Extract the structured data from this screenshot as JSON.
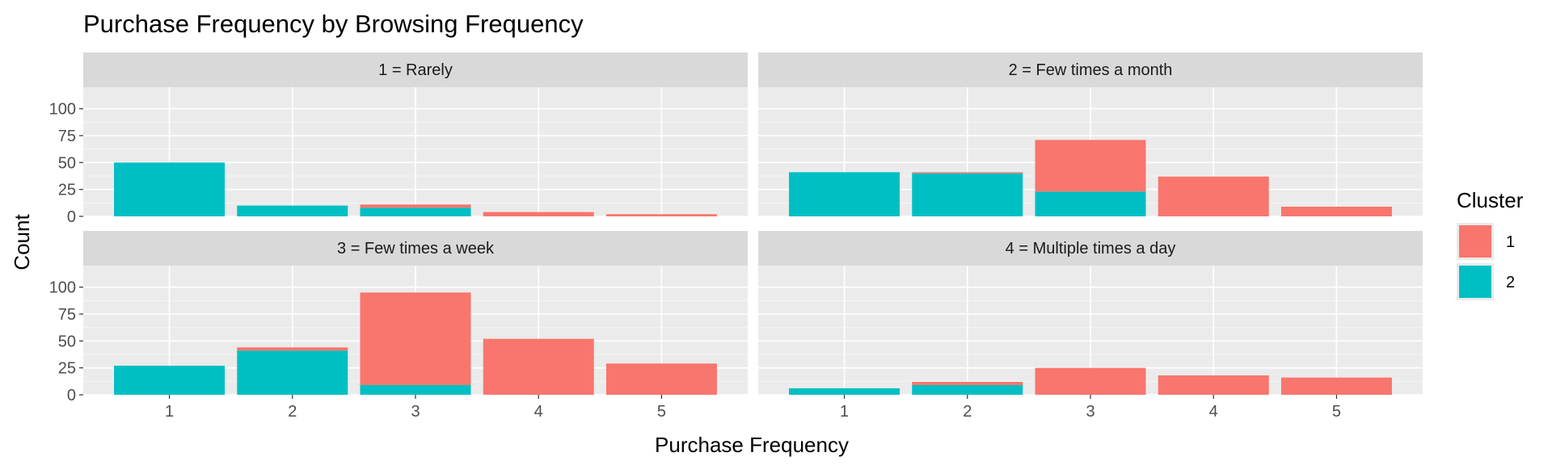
{
  "chart_data": {
    "type": "bar",
    "stacked": true,
    "title": "Purchase Frequency by Browsing Frequency",
    "xlabel": "Purchase Frequency",
    "ylabel": "Count",
    "ylim": [
      0,
      120
    ],
    "yticks": [
      0,
      25,
      50,
      75,
      100
    ],
    "categories": [
      "1",
      "2",
      "3",
      "4",
      "5"
    ],
    "legend": {
      "title": "Cluster",
      "position": "right",
      "entries": [
        {
          "label": "1",
          "color": "#F8766D"
        },
        {
          "label": "2",
          "color": "#00BFC4"
        }
      ]
    },
    "panels": [
      {
        "label": "1 = Rarely",
        "series": [
          {
            "name": "2",
            "values": [
              50,
              10,
              8,
              0,
              0
            ]
          },
          {
            "name": "1",
            "values": [
              0,
              0,
              3,
              4,
              2
            ]
          }
        ]
      },
      {
        "label": "2 = Few times a month",
        "series": [
          {
            "name": "2",
            "values": [
              41,
              40,
              23,
              0,
              0
            ]
          },
          {
            "name": "1",
            "values": [
              0,
              1,
              48,
              37,
              9
            ]
          }
        ]
      },
      {
        "label": "3 = Few times a week",
        "series": [
          {
            "name": "2",
            "values": [
              27,
              41,
              9,
              0,
              0
            ]
          },
          {
            "name": "1",
            "values": [
              0,
              3,
              86,
              52,
              29
            ]
          }
        ]
      },
      {
        "label": "4 = Multiple times a day",
        "series": [
          {
            "name": "2",
            "values": [
              6,
              9,
              0,
              0,
              0
            ]
          },
          {
            "name": "1",
            "values": [
              0,
              3,
              25,
              18,
              16
            ]
          }
        ]
      }
    ]
  }
}
